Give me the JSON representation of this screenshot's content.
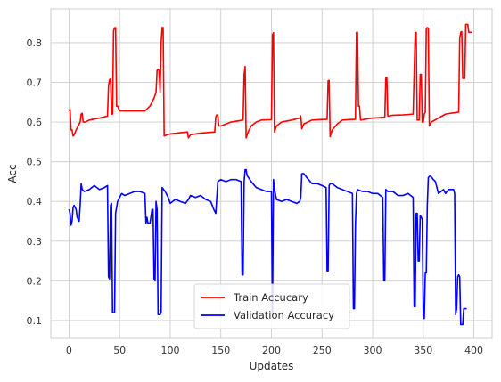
{
  "chart_data": {
    "type": "line",
    "title": "",
    "xlabel": "Updates",
    "ylabel": "Acc",
    "xlim": [
      -18,
      418
    ],
    "ylim": [
      0.055,
      0.885
    ],
    "xticks": [
      0,
      50,
      100,
      150,
      200,
      250,
      300,
      350,
      400
    ],
    "yticks": [
      0.1,
      0.2,
      0.3,
      0.4,
      0.5,
      0.6,
      0.7,
      0.8
    ],
    "grid": true,
    "legend": "lower-center",
    "series": [
      {
        "name": "Train Accucary",
        "color": "#ff0000",
        "points": [
          [
            0,
            0.628
          ],
          [
            1,
            0.632
          ],
          [
            2,
            0.58
          ],
          [
            3,
            0.58
          ],
          [
            4,
            0.565
          ],
          [
            5,
            0.567
          ],
          [
            7,
            0.58
          ],
          [
            9,
            0.59
          ],
          [
            11,
            0.6
          ],
          [
            12,
            0.62
          ],
          [
            13,
            0.622
          ],
          [
            14,
            0.6
          ],
          [
            16,
            0.6
          ],
          [
            20,
            0.605
          ],
          [
            30,
            0.61
          ],
          [
            38,
            0.615
          ],
          [
            39,
            0.69
          ],
          [
            40,
            0.707
          ],
          [
            41,
            0.708
          ],
          [
            42,
            0.62
          ],
          [
            43,
            0.62
          ],
          [
            44,
            0.83
          ],
          [
            45,
            0.837
          ],
          [
            46,
            0.838
          ],
          [
            47,
            0.64
          ],
          [
            48,
            0.64
          ],
          [
            50,
            0.628
          ],
          [
            60,
            0.628
          ],
          [
            70,
            0.628
          ],
          [
            75,
            0.628
          ],
          [
            80,
            0.64
          ],
          [
            84,
            0.66
          ],
          [
            86,
            0.675
          ],
          [
            87,
            0.73
          ],
          [
            88,
            0.733
          ],
          [
            89,
            0.73
          ],
          [
            90,
            0.675
          ],
          [
            91,
            0.8
          ],
          [
            92,
            0.838
          ],
          [
            93,
            0.838
          ],
          [
            94,
            0.565
          ],
          [
            96,
            0.567
          ],
          [
            100,
            0.57
          ],
          [
            110,
            0.573
          ],
          [
            117,
            0.575
          ],
          [
            118,
            0.56
          ],
          [
            120,
            0.568
          ],
          [
            130,
            0.572
          ],
          [
            144,
            0.575
          ],
          [
            145,
            0.613
          ],
          [
            146,
            0.618
          ],
          [
            147,
            0.617
          ],
          [
            148,
            0.59
          ],
          [
            150,
            0.59
          ],
          [
            160,
            0.6
          ],
          [
            172,
            0.605
          ],
          [
            173,
            0.72
          ],
          [
            174,
            0.74
          ],
          [
            175,
            0.56
          ],
          [
            177,
            0.575
          ],
          [
            180,
            0.59
          ],
          [
            185,
            0.6
          ],
          [
            190,
            0.605
          ],
          [
            200,
            0.606
          ],
          [
            201,
            0.82
          ],
          [
            202,
            0.825
          ],
          [
            203,
            0.575
          ],
          [
            205,
            0.59
          ],
          [
            210,
            0.6
          ],
          [
            220,
            0.605
          ],
          [
            228,
            0.61
          ],
          [
            229,
            0.615
          ],
          [
            230,
            0.583
          ],
          [
            232,
            0.595
          ],
          [
            240,
            0.605
          ],
          [
            255,
            0.607
          ],
          [
            256,
            0.704
          ],
          [
            257,
            0.705
          ],
          [
            258,
            0.563
          ],
          [
            260,
            0.58
          ],
          [
            265,
            0.595
          ],
          [
            270,
            0.605
          ],
          [
            283,
            0.607
          ],
          [
            284,
            0.826
          ],
          [
            285,
            0.826
          ],
          [
            286,
            0.64
          ],
          [
            287,
            0.64
          ],
          [
            288,
            0.605
          ],
          [
            300,
            0.61
          ],
          [
            312,
            0.612
          ],
          [
            313,
            0.712
          ],
          [
            314,
            0.712
          ],
          [
            315,
            0.615
          ],
          [
            320,
            0.617
          ],
          [
            330,
            0.618
          ],
          [
            340,
            0.62
          ],
          [
            342,
            0.825
          ],
          [
            343,
            0.826
          ],
          [
            344,
            0.605
          ],
          [
            346,
            0.605
          ],
          [
            347,
            0.72
          ],
          [
            348,
            0.72
          ],
          [
            349,
            0.6
          ],
          [
            350,
            0.6
          ],
          [
            351,
            0.62
          ],
          [
            352,
            0.625
          ],
          [
            353,
            0.835
          ],
          [
            354,
            0.838
          ],
          [
            355,
            0.835
          ],
          [
            356,
            0.59
          ],
          [
            358,
            0.6
          ],
          [
            365,
            0.61
          ],
          [
            372,
            0.62
          ],
          [
            385,
            0.625
          ],
          [
            386,
            0.81
          ],
          [
            387,
            0.826
          ],
          [
            388,
            0.828
          ],
          [
            389,
            0.71
          ],
          [
            391,
            0.71
          ],
          [
            392,
            0.846
          ],
          [
            393,
            0.846
          ],
          [
            394,
            0.846
          ],
          [
            395,
            0.826
          ],
          [
            398,
            0.826
          ]
        ]
      },
      {
        "name": "Validation Accuracy",
        "color": "#0000ff",
        "points": [
          [
            0,
            0.38
          ],
          [
            1,
            0.37
          ],
          [
            2,
            0.34
          ],
          [
            3,
            0.35
          ],
          [
            4,
            0.385
          ],
          [
            5,
            0.39
          ],
          [
            7,
            0.38
          ],
          [
            8,
            0.36
          ],
          [
            10,
            0.35
          ],
          [
            11,
            0.39
          ],
          [
            12,
            0.445
          ],
          [
            13,
            0.43
          ],
          [
            15,
            0.425
          ],
          [
            20,
            0.43
          ],
          [
            25,
            0.44
          ],
          [
            30,
            0.43
          ],
          [
            35,
            0.435
          ],
          [
            38,
            0.44
          ],
          [
            39,
            0.21
          ],
          [
            40,
            0.205
          ],
          [
            41,
            0.39
          ],
          [
            42,
            0.395
          ],
          [
            43,
            0.12
          ],
          [
            44,
            0.12
          ],
          [
            45,
            0.12
          ],
          [
            46,
            0.37
          ],
          [
            48,
            0.4
          ],
          [
            52,
            0.42
          ],
          [
            55,
            0.415
          ],
          [
            60,
            0.42
          ],
          [
            65,
            0.425
          ],
          [
            70,
            0.425
          ],
          [
            75,
            0.42
          ],
          [
            76,
            0.345
          ],
          [
            77,
            0.36
          ],
          [
            78,
            0.345
          ],
          [
            80,
            0.345
          ],
          [
            82,
            0.38
          ],
          [
            83,
            0.38
          ],
          [
            84,
            0.205
          ],
          [
            85,
            0.2
          ],
          [
            86,
            0.4
          ],
          [
            87,
            0.38
          ],
          [
            88,
            0.115
          ],
          [
            89,
            0.115
          ],
          [
            90,
            0.115
          ],
          [
            91,
            0.12
          ],
          [
            92,
            0.435
          ],
          [
            95,
            0.425
          ],
          [
            98,
            0.41
          ],
          [
            100,
            0.395
          ],
          [
            105,
            0.405
          ],
          [
            110,
            0.4
          ],
          [
            115,
            0.395
          ],
          [
            118,
            0.405
          ],
          [
            120,
            0.415
          ],
          [
            125,
            0.41
          ],
          [
            130,
            0.415
          ],
          [
            135,
            0.405
          ],
          [
            140,
            0.4
          ],
          [
            143,
            0.38
          ],
          [
            144,
            0.375
          ],
          [
            145,
            0.37
          ],
          [
            146,
            0.41
          ],
          [
            147,
            0.45
          ],
          [
            150,
            0.455
          ],
          [
            155,
            0.45
          ],
          [
            160,
            0.455
          ],
          [
            165,
            0.455
          ],
          [
            170,
            0.45
          ],
          [
            171,
            0.215
          ],
          [
            172,
            0.215
          ],
          [
            173,
            0.45
          ],
          [
            174,
            0.48
          ],
          [
            175,
            0.48
          ],
          [
            176,
            0.465
          ],
          [
            180,
            0.45
          ],
          [
            185,
            0.435
          ],
          [
            190,
            0.43
          ],
          [
            195,
            0.425
          ],
          [
            200,
            0.425
          ],
          [
            201,
            0.115
          ],
          [
            202,
            0.455
          ],
          [
            203,
            0.43
          ],
          [
            205,
            0.405
          ],
          [
            210,
            0.4
          ],
          [
            215,
            0.405
          ],
          [
            220,
            0.4
          ],
          [
            225,
            0.395
          ],
          [
            228,
            0.4
          ],
          [
            229,
            0.41
          ],
          [
            230,
            0.47
          ],
          [
            232,
            0.47
          ],
          [
            235,
            0.46
          ],
          [
            240,
            0.445
          ],
          [
            245,
            0.445
          ],
          [
            250,
            0.44
          ],
          [
            254,
            0.435
          ],
          [
            255,
            0.225
          ],
          [
            256,
            0.225
          ],
          [
            257,
            0.44
          ],
          [
            258,
            0.445
          ],
          [
            260,
            0.445
          ],
          [
            265,
            0.435
          ],
          [
            270,
            0.43
          ],
          [
            275,
            0.425
          ],
          [
            280,
            0.42
          ],
          [
            281,
            0.13
          ],
          [
            282,
            0.13
          ],
          [
            283,
            0.34
          ],
          [
            284,
            0.42
          ],
          [
            285,
            0.43
          ],
          [
            290,
            0.425
          ],
          [
            295,
            0.425
          ],
          [
            300,
            0.42
          ],
          [
            305,
            0.42
          ],
          [
            310,
            0.41
          ],
          [
            311,
            0.2
          ],
          [
            312,
            0.2
          ],
          [
            313,
            0.43
          ],
          [
            315,
            0.425
          ],
          [
            320,
            0.425
          ],
          [
            325,
            0.415
          ],
          [
            330,
            0.415
          ],
          [
            335,
            0.42
          ],
          [
            340,
            0.41
          ],
          [
            341,
            0.135
          ],
          [
            342,
            0.135
          ],
          [
            343,
            0.37
          ],
          [
            344,
            0.37
          ],
          [
            345,
            0.25
          ],
          [
            346,
            0.25
          ],
          [
            347,
            0.365
          ],
          [
            349,
            0.355
          ],
          [
            350,
            0.11
          ],
          [
            351,
            0.105
          ],
          [
            352,
            0.22
          ],
          [
            353,
            0.22
          ],
          [
            354,
            0.39
          ],
          [
            355,
            0.46
          ],
          [
            357,
            0.465
          ],
          [
            360,
            0.455
          ],
          [
            362,
            0.45
          ],
          [
            365,
            0.42
          ],
          [
            370,
            0.43
          ],
          [
            372,
            0.42
          ],
          [
            375,
            0.43
          ],
          [
            380,
            0.43
          ],
          [
            381,
            0.42
          ],
          [
            382,
            0.115
          ],
          [
            383,
            0.13
          ],
          [
            384,
            0.21
          ],
          [
            385,
            0.215
          ],
          [
            386,
            0.21
          ],
          [
            387,
            0.09
          ],
          [
            388,
            0.09
          ],
          [
            389,
            0.09
          ],
          [
            390,
            0.13
          ],
          [
            392,
            0.13
          ],
          [
            393,
            0.13
          ]
        ]
      }
    ]
  }
}
